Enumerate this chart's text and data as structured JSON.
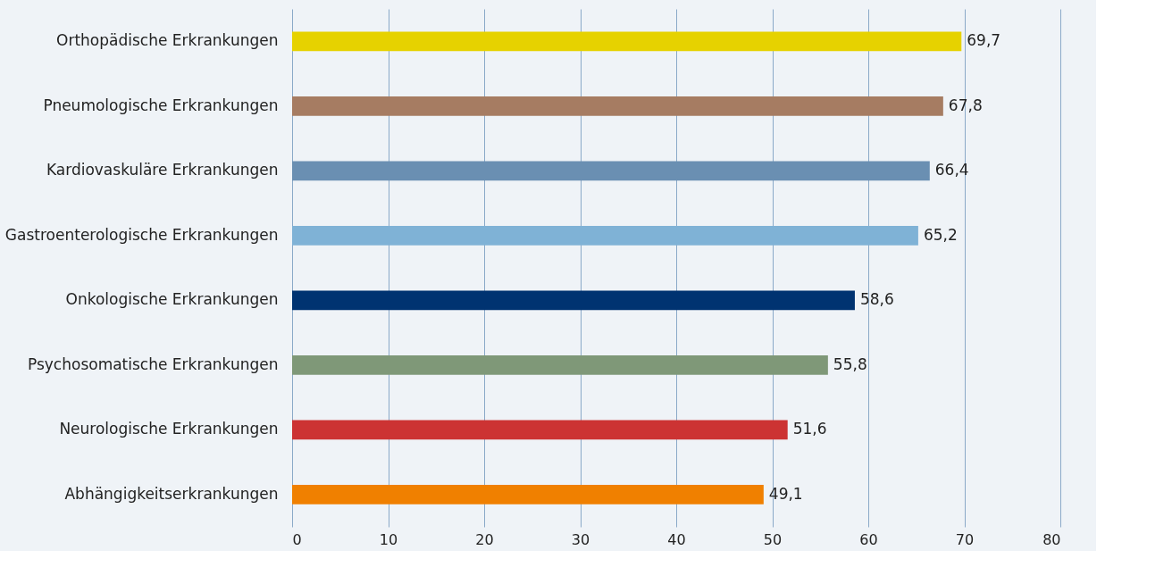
{
  "chart_data": {
    "type": "bar",
    "orientation": "horizontal",
    "categories": [
      "Orthopädische Erkrankungen",
      "Pneumologische Erkrankungen",
      "Kardiovaskuläre Erkrankungen",
      "Gastroenterologische Erkrankungen",
      "Onkologische Erkrankungen",
      "Psychosomatische Erkrankungen",
      "Neurologische Erkrankungen",
      "Abhängigkeitserkrankungen"
    ],
    "values": [
      69.7,
      67.8,
      66.4,
      65.2,
      58.6,
      55.8,
      51.6,
      49.1
    ],
    "value_labels": [
      "69,7",
      "67,8",
      "66,4",
      "65,2",
      "58,6",
      "55,8",
      "51,6",
      "49,1"
    ],
    "colors": [
      "#e6d200",
      "#a67c62",
      "#6a8fb2",
      "#7fb2d6",
      "#003371",
      "#7f9878",
      "#cc3333",
      "#f08000"
    ],
    "xlim": [
      0,
      80
    ],
    "xticks": [
      0,
      10,
      20,
      30,
      40,
      50,
      60,
      70,
      80
    ],
    "grid": "x"
  }
}
